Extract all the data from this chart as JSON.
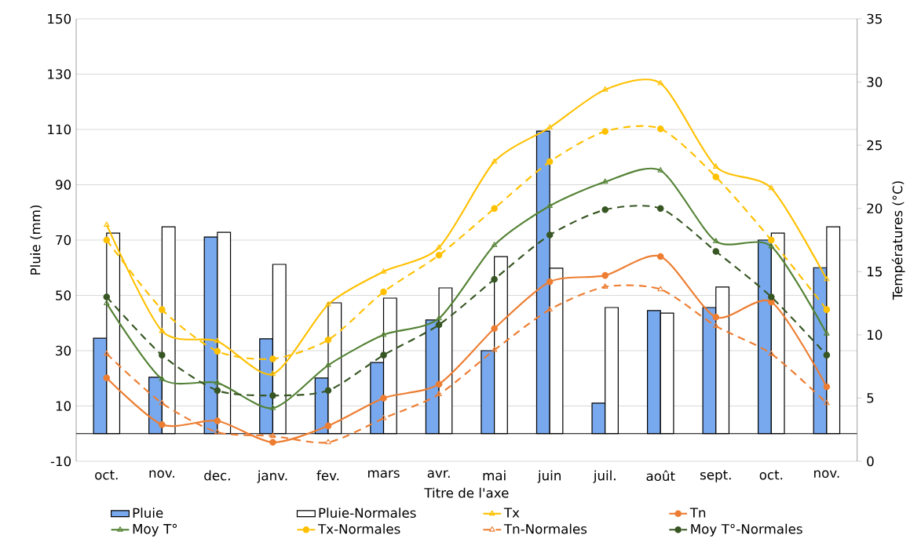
{
  "chart_data": {
    "type": "bar",
    "xlabel": "Titre de l'axe",
    "ylabel": "Pluie (mm)",
    "y2label": "Températures (°C)",
    "categories": [
      "oct.",
      "nov.",
      "dec.",
      "janv.",
      "fev.",
      "mars",
      "avr.",
      "mai",
      "juin",
      "juil.",
      "août",
      "sept.",
      "oct.",
      "nov."
    ],
    "series": [
      {
        "name": "Pluie",
        "color": "#78a9ef",
        "values": [
          34.5,
          20.4,
          71.1,
          34.3,
          20.1,
          25.7,
          41.1,
          30,
          109.4,
          11,
          44.5,
          45.6,
          70,
          60
        ]
      },
      {
        "name": "Pluie-Normales",
        "color": "#ffffff",
        "values": [
          72.5,
          74.8,
          72.8,
          61.2,
          47.3,
          49,
          52.7,
          64,
          59.8,
          45.6,
          43.6,
          53,
          72.5,
          74.8
        ]
      },
      {
        "name": "Tx",
        "type": "line",
        "axis": "y2",
        "color": "#ffc000",
        "marker": "triangle",
        "line_style": "solid",
        "values": [
          18.7,
          10.3,
          9.5,
          6.9,
          12.4,
          15.0,
          16.9,
          23.7,
          26.4,
          29.4,
          29.9,
          23.3,
          21.6,
          14.4
        ]
      },
      {
        "name": "Tn",
        "type": "line",
        "axis": "y2",
        "color": "#ed7d31",
        "marker": "circle",
        "line_style": "solid",
        "values": [
          6.6,
          2.9,
          3.2,
          1.5,
          2.8,
          5.0,
          6.1,
          10.5,
          14.2,
          14.7,
          16.2,
          11.4,
          12.6,
          5.9
        ]
      },
      {
        "name": "Moy T°",
        "type": "line",
        "axis": "y2",
        "color": "#548235",
        "marker": "triangle",
        "line_style": "solid",
        "values": [
          12.5,
          6.5,
          6.2,
          4.2,
          7.6,
          10.0,
          11.3,
          17.1,
          20.2,
          22.1,
          23.0,
          17.4,
          17.0,
          10.1
        ]
      },
      {
        "name": "Tx-Normales",
        "type": "line",
        "axis": "y2",
        "color": "#ffc000",
        "marker": "circle",
        "line_style": "dashed",
        "values": [
          17.5,
          12.0,
          8.7,
          8.1,
          9.6,
          13.4,
          16.3,
          20.0,
          23.7,
          26.1,
          26.3,
          22.5,
          17.5,
          12.0
        ]
      },
      {
        "name": "Tn-Normales",
        "type": "line",
        "axis": "y2",
        "color": "#ed7d31",
        "marker": "triangle",
        "line_style": "dashed",
        "values": [
          8.5,
          4.6,
          2.3,
          2.0,
          1.5,
          3.4,
          5.3,
          8.8,
          12.0,
          13.8,
          13.6,
          10.7,
          8.5,
          4.6
        ]
      },
      {
        "name": "Moy T°-Normales",
        "type": "line",
        "axis": "y2",
        "color": "#375623",
        "marker": "circle",
        "line_style": "dashed",
        "values": [
          13.0,
          8.4,
          5.6,
          5.2,
          5.6,
          8.4,
          10.8,
          14.4,
          17.9,
          19.9,
          20.0,
          16.6,
          13.0,
          8.4
        ]
      }
    ],
    "ylim": [
      -10,
      150
    ],
    "yticks": [
      -10,
      10,
      30,
      50,
      70,
      90,
      110,
      130,
      150
    ],
    "y2lim": [
      0,
      35
    ],
    "y2ticks": [
      0,
      5,
      10,
      15,
      20,
      25,
      30,
      35
    ],
    "grid": "y",
    "legend": "bottom"
  }
}
